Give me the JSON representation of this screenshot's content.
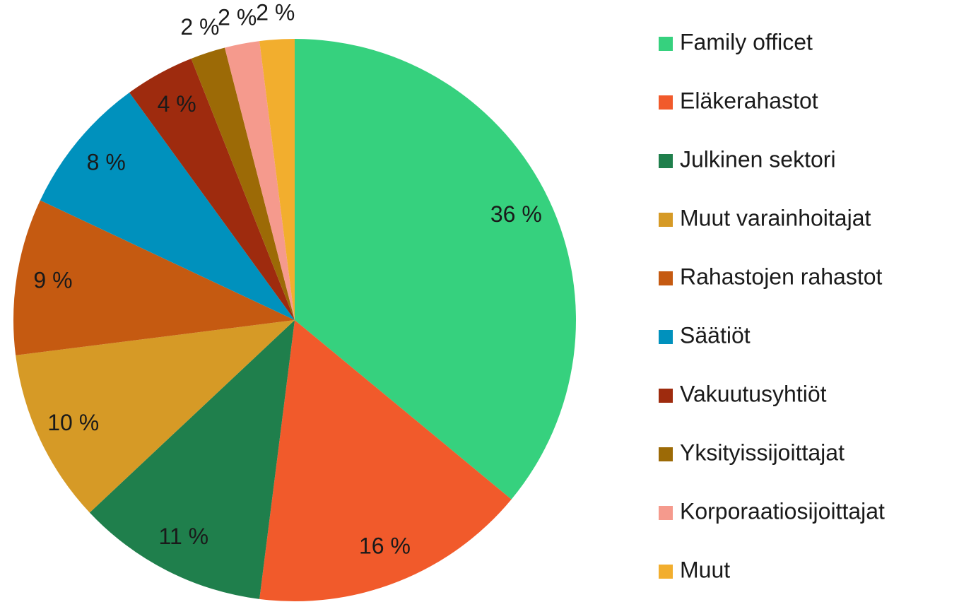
{
  "chart_data": {
    "type": "pie",
    "categories": [
      "Family officet",
      "Eläkerahastot",
      "Julkinen sektori",
      "Muut varainhoitajat",
      "Rahastojen rahastot",
      "Säätiöt",
      "Vakuutusyhtiöt",
      "Yksityissijoittajat",
      "Korporaatiosijoittajat",
      "Muut"
    ],
    "values": [
      36,
      16,
      11,
      10,
      9,
      8,
      4,
      2,
      2,
      2
    ],
    "value_labels": [
      "36 %",
      "16 %",
      "11 %",
      "10 %",
      "9 %",
      "8 %",
      "4 %",
      "2 %",
      "2 %",
      "2 %"
    ],
    "colors": [
      "#36d17e",
      "#f15a2b",
      "#1f7f4c",
      "#d69a26",
      "#c55a11",
      "#0091bd",
      "#9e2b0e",
      "#9c6a06",
      "#f59a8d",
      "#f2ae2e"
    ],
    "legend": "right"
  }
}
